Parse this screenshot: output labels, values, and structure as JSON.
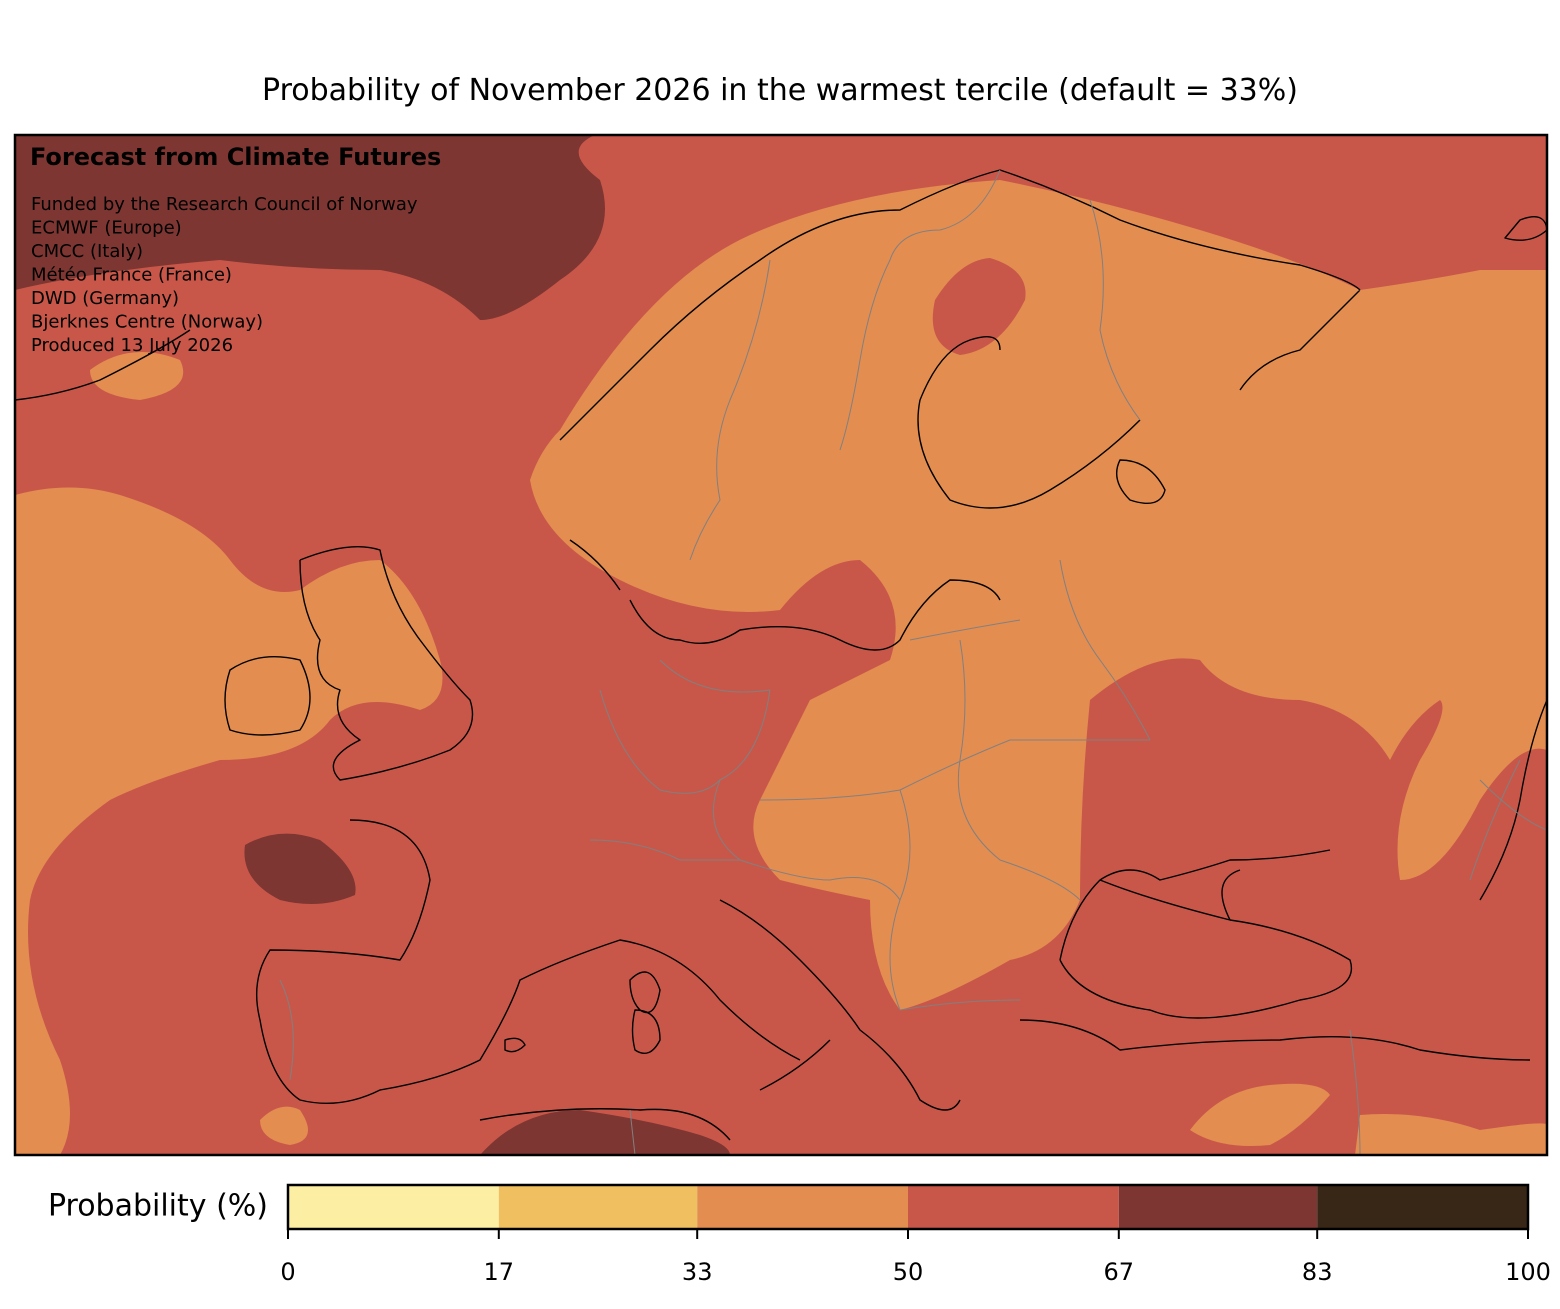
{
  "title": "Probability of November 2026 in the warmest tercile (default = 33%)",
  "map": {
    "heading": "Forecast from Climate Futures",
    "credits": [
      "Funded by the Research Council of Norway",
      "ECMWF (Europe)",
      "CMCC (Italy)",
      "Météo France (France)",
      "DWD (Germany)",
      "Bjerknes Centre (Norway)",
      "Produced 13 July 2026"
    ]
  },
  "colorbar": {
    "label": "Probability (%)",
    "bins": [
      0,
      17,
      33,
      50,
      67,
      83,
      100
    ],
    "colors": [
      "#fcefa4",
      "#f0c060",
      "#e38d51",
      "#c8574a",
      "#7e3632",
      "#382716"
    ],
    "xlim": [
      0,
      100
    ],
    "xticks": [
      0,
      17,
      33,
      50,
      67,
      83,
      100
    ]
  }
}
